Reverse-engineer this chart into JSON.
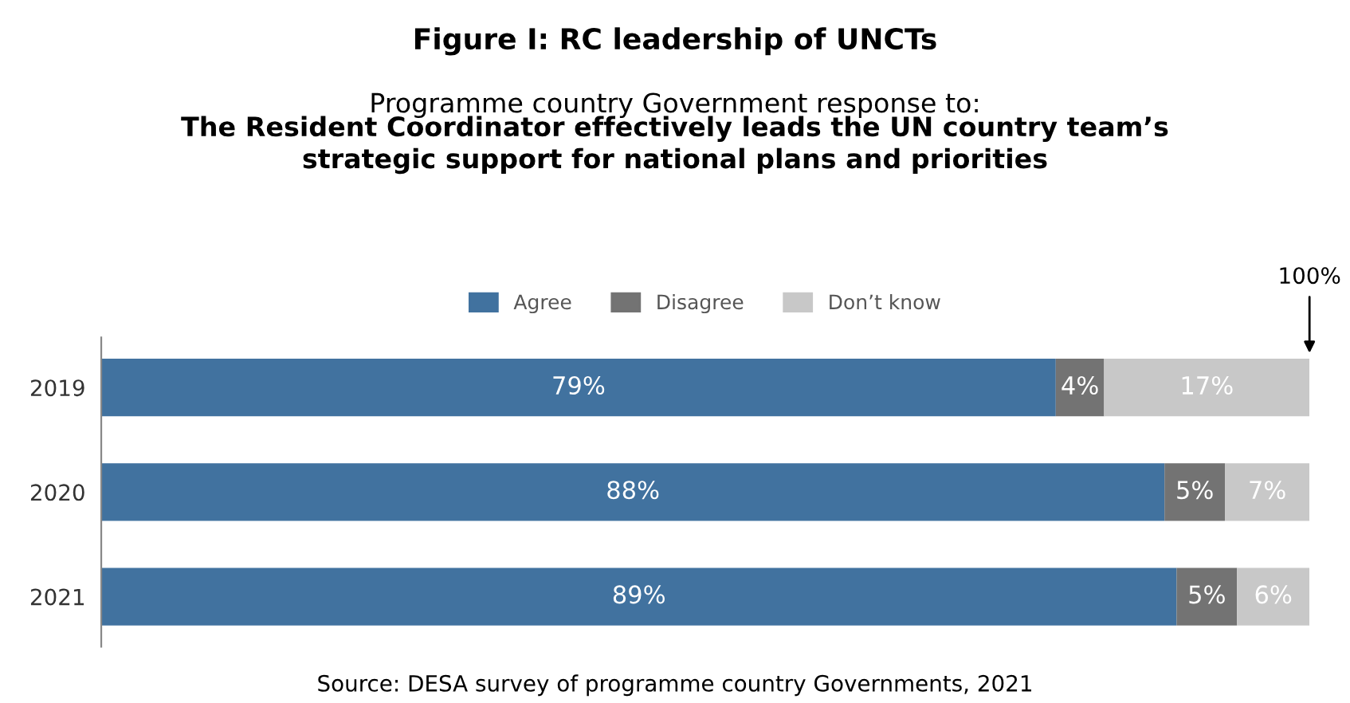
{
  "chart_data": {
    "type": "bar",
    "orientation": "horizontal",
    "stacked": true,
    "title": "Figure I: RC leadership of UNCTs",
    "subtitle": "Programme country Government response to:\nThe Resident Coordinator effectively leads the UN country team’s\nstrategic support for national plans and priorities",
    "categories": [
      "2019",
      "2020",
      "2021"
    ],
    "series": [
      {
        "name": "Agree",
        "color": "#41729f",
        "values": [
          79,
          88,
          89
        ],
        "value_labels": [
          "79%",
          "88%",
          "89%"
        ]
      },
      {
        "name": "Disagree",
        "color": "#737373",
        "values": [
          4,
          5,
          5
        ],
        "value_labels": [
          "4%",
          "5%",
          "5%"
        ]
      },
      {
        "name": "Don’t know",
        "color": "#c8c8c8",
        "values": [
          17,
          7,
          6
        ],
        "value_labels": [
          "17%",
          "7%",
          "6%"
        ]
      }
    ],
    "legend": "top",
    "grid": false,
    "tick_labels": "y",
    "annotations": [
      "100%",
      "Source: DESA survey of programme country Governments, 2021"
    ]
  }
}
